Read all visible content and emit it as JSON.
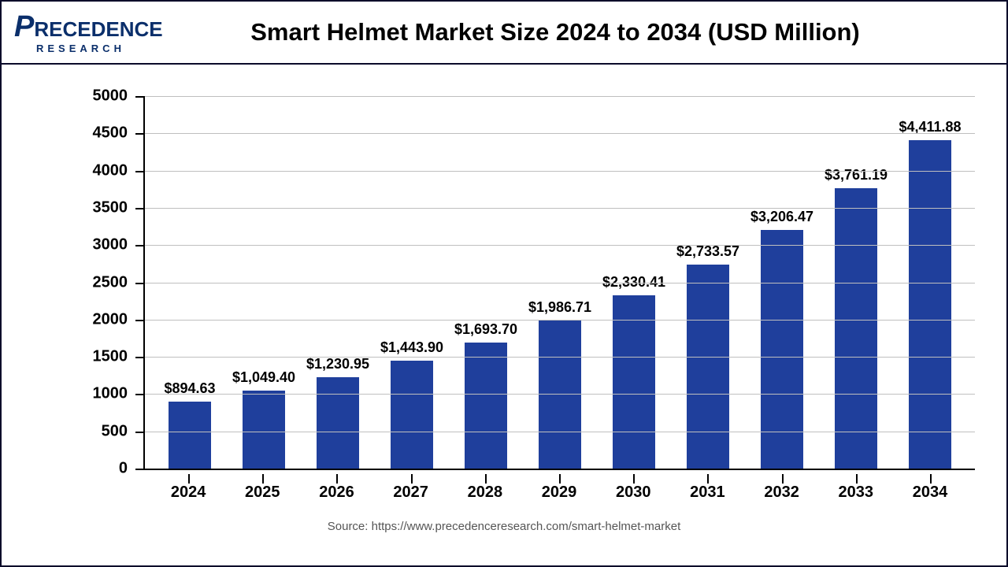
{
  "header": {
    "logo_main": "RECEDENCE",
    "logo_big": "P",
    "logo_sub": "RESEARCH",
    "title": "Smart Helmet Market Size 2024 to 2034 (USD Million)"
  },
  "chart": {
    "type": "bar",
    "categories": [
      "2024",
      "2025",
      "2026",
      "2027",
      "2028",
      "2029",
      "2030",
      "2031",
      "2032",
      "2033",
      "2034"
    ],
    "values": [
      894.63,
      1049.4,
      1230.95,
      1443.9,
      1693.7,
      1986.71,
      2330.41,
      2733.57,
      3206.47,
      3761.19,
      4411.88
    ],
    "value_labels": [
      "$894.63",
      "$1,049.40",
      "$1,230.95",
      "$1,443.90",
      "$1,693.70",
      "$1,986.71",
      "$2,330.41",
      "$2,733.57",
      "$3,206.47",
      "$3,761.19",
      "$4,411.88"
    ],
    "bar_color": "#1f3f9c",
    "ylim": [
      0,
      5000
    ],
    "ytick_step": 500,
    "yticks": [
      0,
      500,
      1000,
      1500,
      2000,
      2500,
      3000,
      3500,
      4000,
      4500,
      5000
    ],
    "grid_color": "#bfbfbf",
    "background_color": "#ffffff",
    "axis_color": "#000000",
    "title_fontsize": 31,
    "label_fontsize": 20,
    "value_label_fontsize": 18,
    "bar_width": 0.58
  },
  "source": "Source: https://www.precedenceresearch.com/smart-helmet-market"
}
